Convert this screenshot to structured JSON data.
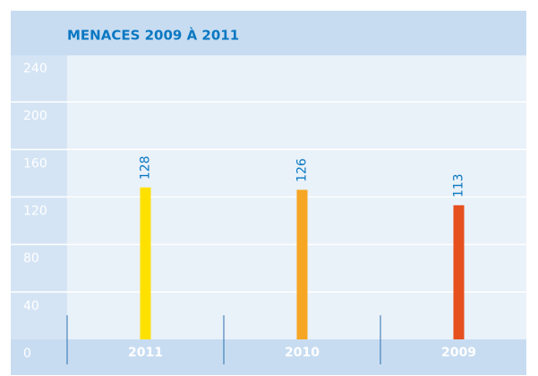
{
  "chart_data": {
    "type": "bar",
    "title": "MENACES 2009 À 2011",
    "categories": [
      "2011",
      "2010",
      "2009"
    ],
    "values": [
      128,
      126,
      113
    ],
    "colors": [
      "#ffe100",
      "#f6a623",
      "#e6501e"
    ],
    "ylim": [
      0,
      240
    ],
    "yticks": [
      0,
      40,
      80,
      120,
      160,
      200,
      240
    ],
    "grid": true
  }
}
